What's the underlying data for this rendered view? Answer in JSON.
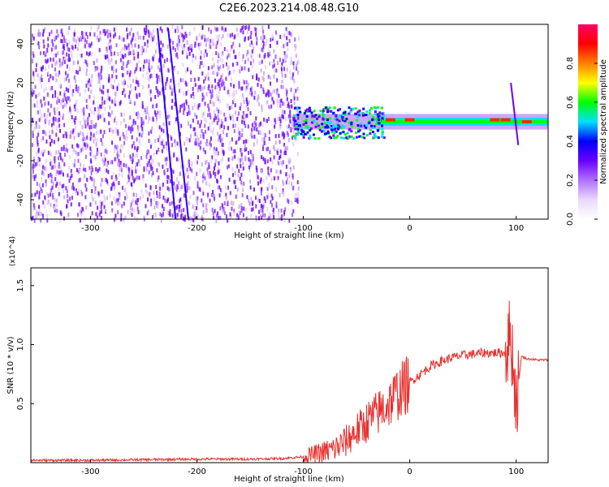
{
  "title": "C2E6.2023.214.08.48.G10",
  "chart_data": [
    {
      "type": "heatmap",
      "xlabel": "Height of straight line (km)",
      "ylabel": "Frequency (Hz)",
      "xlim": [
        -356,
        130
      ],
      "ylim": [
        -50,
        50
      ],
      "xticks": [
        -300,
        -200,
        -100,
        0,
        100
      ],
      "yticks": [
        -40,
        -20,
        0,
        20,
        40
      ],
      "colorbar": {
        "label": "Normalized spectral amplitude",
        "range": [
          0,
          1
        ],
        "ticks": [
          0.0,
          0.2,
          0.4,
          0.6,
          0.8
        ],
        "colormap": [
          "#ffffff",
          "#e9d8ff",
          "#b070ff",
          "#6a00ff",
          "#0000ff",
          "#00e0ff",
          "#00ff00",
          "#ffff00",
          "#ff8000",
          "#ff0000",
          "#ff0066"
        ]
      },
      "features": {
        "noise_region_x": [
          -356,
          -105
        ],
        "carrier_band_y": 0,
        "streak_1": [
          [
            -237,
            48
          ],
          [
            -220,
            -50
          ]
        ],
        "streak_2": [
          [
            -227,
            48
          ],
          [
            -208,
            -50
          ]
        ],
        "spike_x": 98
      },
      "grid": false
    },
    {
      "type": "line",
      "xlabel": "Height of straight line (km)",
      "ylabel": "SNR (10 * v/v)",
      "y_multiplier": "(x10^4)",
      "xlim": [
        -356,
        130
      ],
      "ylim": [
        0,
        1.65
      ],
      "xticks": [
        -300,
        -200,
        -100,
        0,
        100
      ],
      "yticks": [
        0.5,
        1.0,
        1.5
      ],
      "ytick_labels": [
        "0.5",
        "1.0",
        "1.5"
      ],
      "color": "#e8302e",
      "series": [
        {
          "x": [
            -356,
            -300,
            -250,
            -200,
            -150,
            -120,
            -100,
            -90,
            -80,
            -70,
            -60,
            -50,
            -45,
            -40,
            -30,
            -20,
            -10,
            0,
            10,
            20,
            30,
            40,
            50,
            60,
            70,
            80,
            90,
            95,
            100,
            105,
            110,
            120,
            130
          ],
          "values": [
            0.02,
            0.02,
            0.025,
            0.03,
            0.03,
            0.035,
            0.05,
            0.07,
            0.09,
            0.12,
            0.18,
            0.27,
            0.3,
            0.35,
            0.42,
            0.5,
            0.6,
            0.68,
            0.75,
            0.82,
            0.86,
            0.89,
            0.91,
            0.92,
            0.93,
            0.93,
            0.93,
            1.1,
            0.5,
            0.9,
            0.88,
            0.87,
            0.87
          ]
        }
      ],
      "grid": false
    }
  ]
}
